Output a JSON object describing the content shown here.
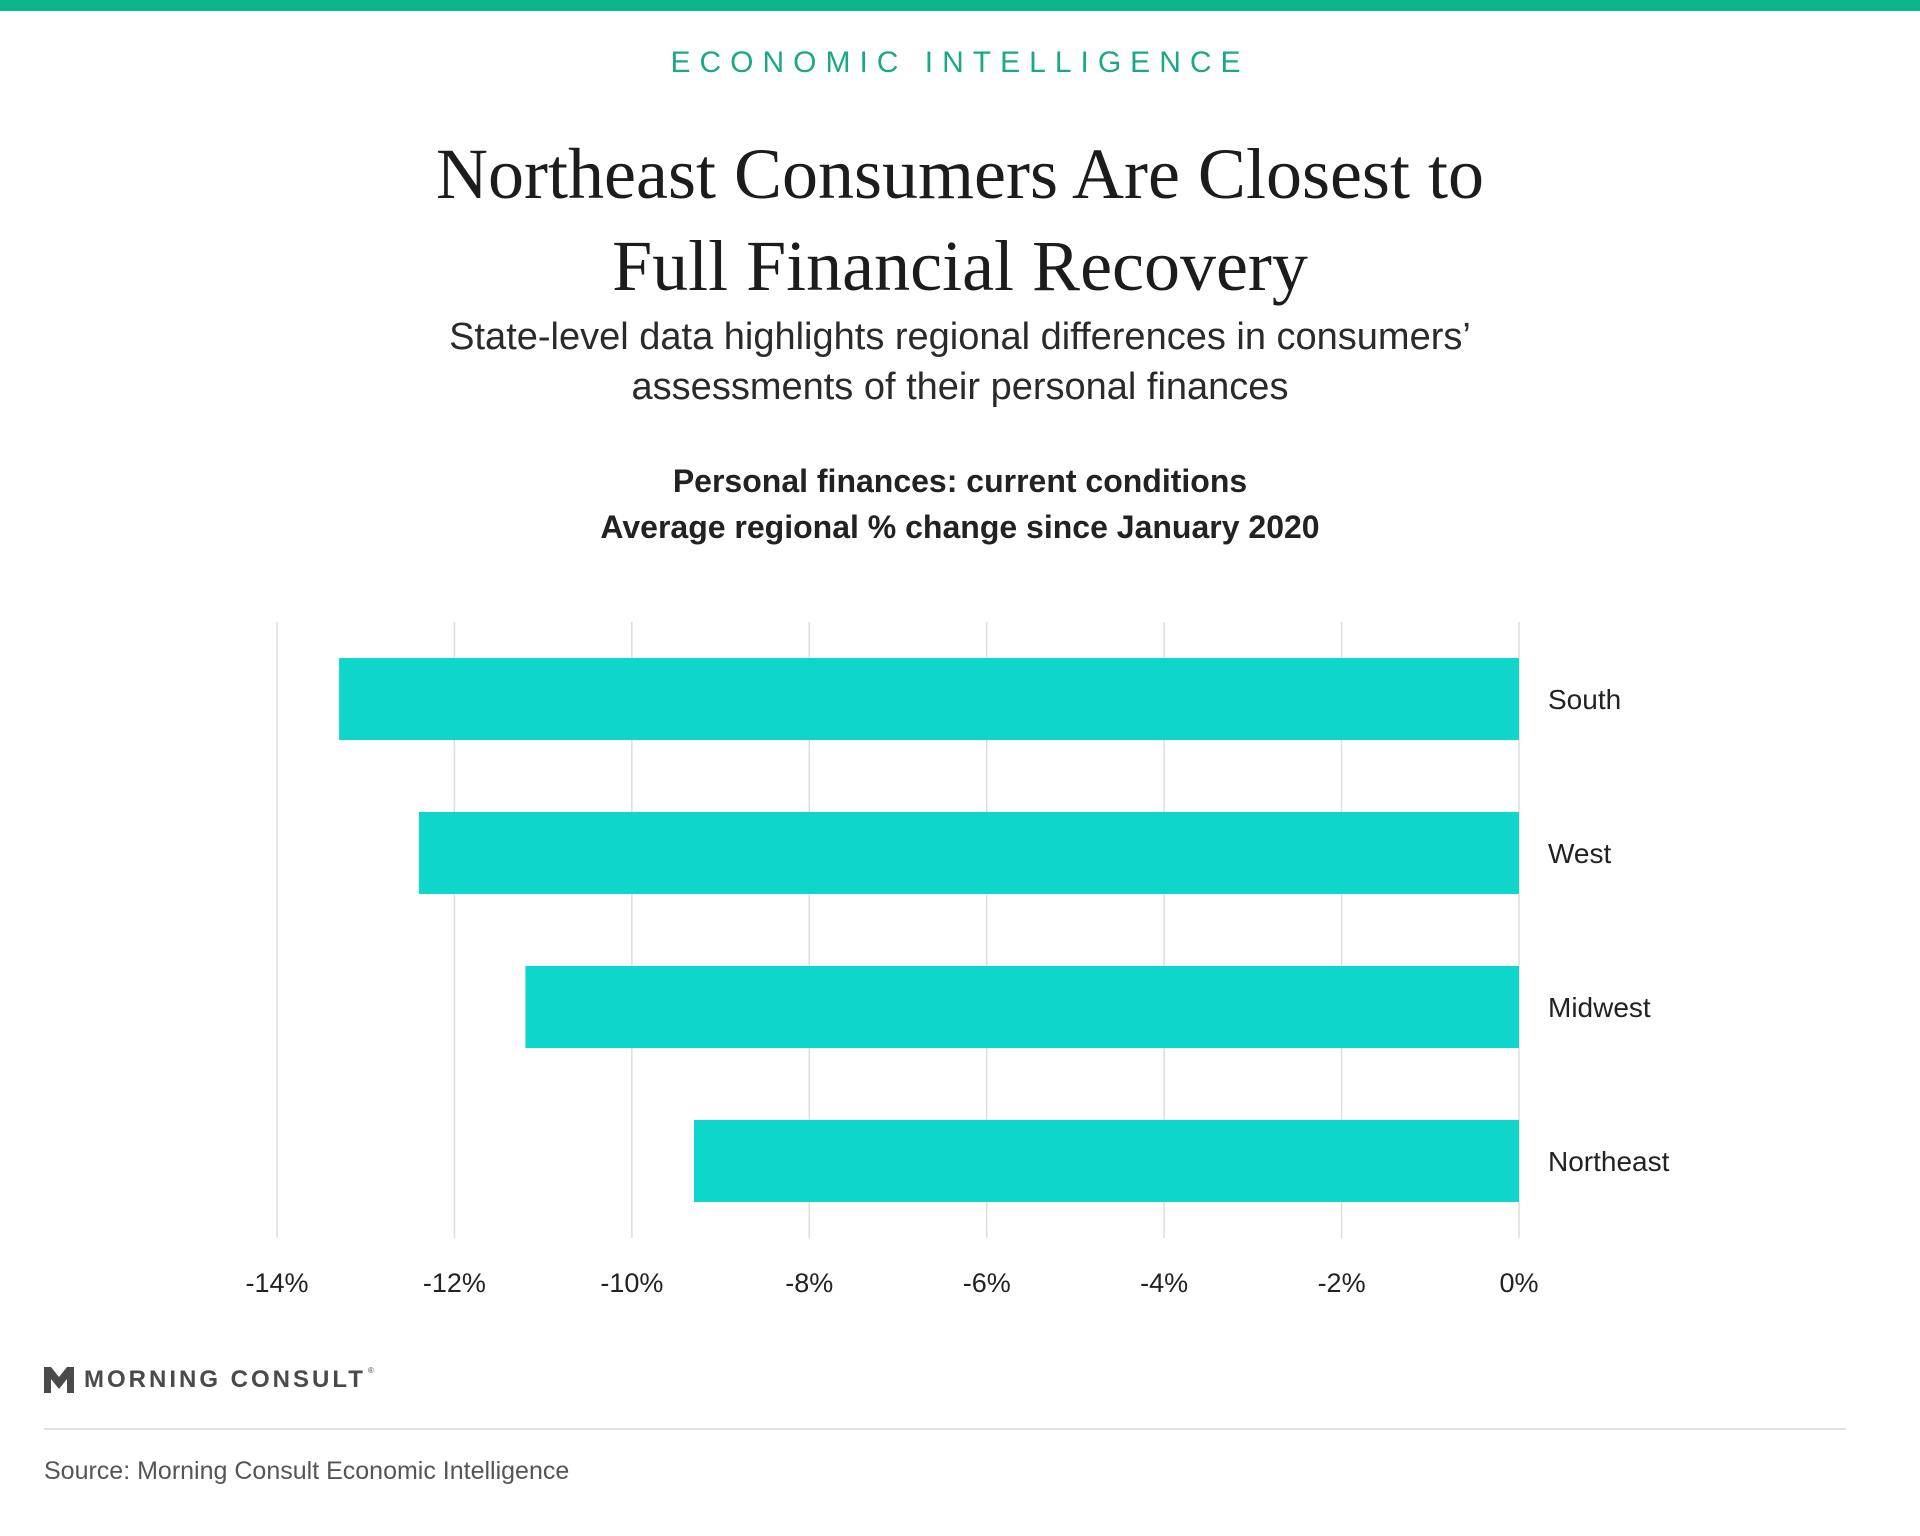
{
  "header": {
    "kicker": "ECONOMIC INTELLIGENCE",
    "title_line1": "Northeast Consumers Are Closest to",
    "title_line2": "Full Financial Recovery",
    "subtitle_line1": "State-level data highlights regional differences in consumers’",
    "subtitle_line2": "assessments of their personal finances"
  },
  "chart_data": {
    "type": "bar",
    "orientation": "horizontal",
    "title_line1": "Personal finances: current conditions",
    "title_line2": "Average regional % change since January 2020",
    "categories": [
      "South",
      "West",
      "Midwest",
      "Northeast"
    ],
    "values": [
      -13.3,
      -12.4,
      -11.2,
      -9.3
    ],
    "xlim": [
      -14,
      0
    ],
    "xticks": [
      -14,
      -12,
      -10,
      -8,
      -6,
      -4,
      -2,
      0
    ],
    "xtick_labels": [
      "-14%",
      "-12%",
      "-10%",
      "-8%",
      "-6%",
      "-4%",
      "-2%",
      "0%"
    ],
    "grid": true,
    "category_labels_position": "right",
    "bar_color": "#0fd6cb",
    "grid_color": "#dddddd"
  },
  "footer": {
    "logo_text": "MORNING CONSULT",
    "logo_tm": "®",
    "source": "Source: Morning Consult Economic Intelligence"
  },
  "colors": {
    "accent": "#0db48a",
    "bar": "#0fd6cb"
  }
}
